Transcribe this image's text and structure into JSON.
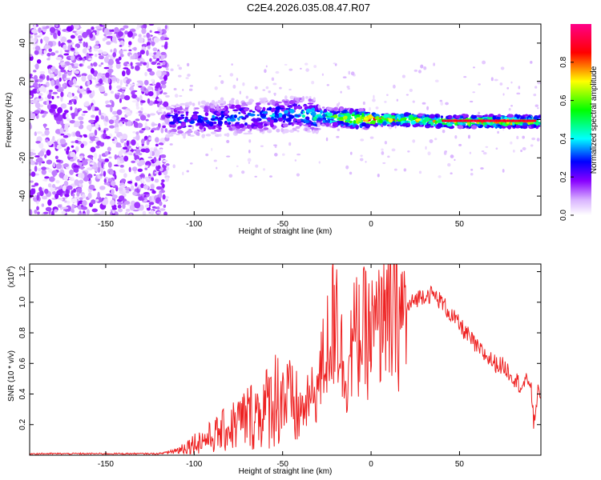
{
  "title": "C2E4.2026.035.08.47.R07",
  "chart_data": [
    {
      "type": "heatmap",
      "title": "C2E4.2026.035.08.47.R07",
      "xlabel": "Height of straight line (km)",
      "ylabel": "Frequency (Hz)",
      "xlim": [
        -193,
        96
      ],
      "ylim": [
        -50,
        50
      ],
      "xticks": [
        -150,
        -100,
        -50,
        0,
        50
      ],
      "yticks": [
        -40,
        -20,
        0,
        20,
        40
      ],
      "colorbar": {
        "label": "Normalized spectral amplitude",
        "range": [
          0,
          1
        ],
        "ticks": [
          "0.0",
          "0.2",
          "0.4",
          "0.6",
          "0.8"
        ],
        "colors": [
          "#ffffff",
          "#8800ff",
          "#0000ff",
          "#00ffff",
          "#00ff00",
          "#ffff00",
          "#ff0000",
          "#ff0088"
        ]
      },
      "ridge": {
        "description_points_x": [
          -115,
          -100,
          -80,
          -60,
          -40,
          -20,
          0,
          20,
          40,
          60,
          80,
          95
        ],
        "center_freq_hz": [
          0,
          0,
          1,
          2,
          3,
          1,
          0,
          0,
          -1,
          -1,
          -1,
          -1
        ],
        "amplitude": [
          0.3,
          0.3,
          0.35,
          0.35,
          0.4,
          0.6,
          0.85,
          0.7,
          0.65,
          0.75,
          0.9,
          0.6
        ]
      }
    },
    {
      "type": "line",
      "xlabel": "Height of straight line (km)",
      "ylabel": "SNR (10 * v/v)",
      "y_multiplier": "(x10",
      "y_exponent": "4",
      "multiplier_close": ")",
      "xlim": [
        -193,
        96
      ],
      "ylim": [
        0,
        1.25
      ],
      "xticks": [
        -150,
        -100,
        -50,
        0,
        50
      ],
      "yticks": [
        0.2,
        0.4,
        0.6,
        0.8,
        1.0,
        1.2
      ],
      "ytick_labels": [
        "0.2",
        "0.4",
        "0.6",
        "0.8",
        "1.0",
        "1.2"
      ],
      "color": "#ee2222",
      "series": [
        {
          "name": "SNR",
          "x": [
            -193,
            -180,
            -160,
            -140,
            -120,
            -110,
            -100,
            -90,
            -80,
            -70,
            -60,
            -55,
            -50,
            -45,
            -40,
            -35,
            -30,
            -25,
            -20,
            -15,
            -10,
            -5,
            0,
            5,
            10,
            15,
            20,
            25,
            30,
            35,
            40,
            45,
            50,
            55,
            60,
            65,
            70,
            75,
            80,
            85,
            88,
            90,
            92,
            94,
            96
          ],
          "y": [
            0.01,
            0.01,
            0.01,
            0.01,
            0.01,
            0.03,
            0.08,
            0.12,
            0.18,
            0.25,
            0.3,
            0.38,
            0.4,
            0.32,
            0.28,
            0.35,
            0.45,
            0.7,
            0.95,
            0.5,
            0.75,
            0.8,
            0.78,
            0.82,
            0.88,
            0.9,
            0.95,
            1.02,
            1.05,
            1.05,
            1.0,
            0.92,
            0.85,
            0.78,
            0.7,
            0.65,
            0.6,
            0.58,
            0.52,
            0.45,
            0.48,
            0.5,
            0.2,
            0.4,
            0.42
          ]
        }
      ]
    }
  ]
}
